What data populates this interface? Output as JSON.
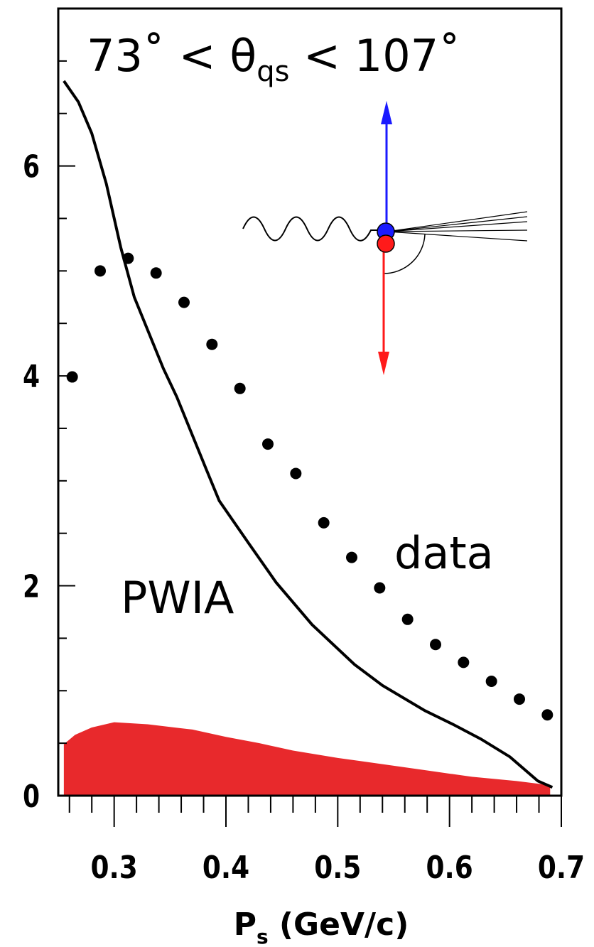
{
  "chart_data": {
    "type": "scatter",
    "title": [
      "73˚ < θ",
      "qs",
      " < 107˚"
    ],
    "x_label": [
      "P",
      "s",
      " (GeV/c)"
    ],
    "xlim": [
      0.25,
      0.7
    ],
    "ylim": [
      0,
      7.5
    ],
    "xticks": [
      {
        "value": 0.3,
        "label": "0.3"
      },
      {
        "value": 0.4,
        "label": "0.4"
      },
      {
        "value": 0.5,
        "label": "0.5"
      },
      {
        "value": 0.6,
        "label": "0.6"
      },
      {
        "value": 0.7,
        "label": "0.7"
      }
    ],
    "xminorticks": [
      0.26,
      0.28,
      0.32,
      0.34,
      0.36,
      0.38,
      0.42,
      0.44,
      0.46,
      0.48,
      0.52,
      0.54,
      0.56,
      0.58,
      0.62,
      0.64,
      0.66,
      0.68
    ],
    "yticks": [
      0,
      2,
      4,
      6
    ],
    "yminorticks": [
      0.5,
      1,
      1.5,
      2.5,
      3,
      3.5,
      4.5,
      5,
      5.5,
      6.5,
      7
    ],
    "series": [
      {
        "name": "data",
        "type": "scatter",
        "color": "#000000",
        "x": [
          0.2625,
          0.2875,
          0.3125,
          0.3375,
          0.3625,
          0.3875,
          0.4125,
          0.4375,
          0.4625,
          0.4875,
          0.5125,
          0.5375,
          0.5625,
          0.5875,
          0.6125,
          0.6375,
          0.6625,
          0.6875
        ],
        "values": [
          3.99,
          5.0,
          5.12,
          4.98,
          4.7,
          4.3,
          3.88,
          3.35,
          3.07,
          2.6,
          2.27,
          1.98,
          1.68,
          1.44,
          1.27,
          1.09,
          0.92,
          0.77
        ]
      },
      {
        "name": "PWIA",
        "type": "line",
        "color": "#000000",
        "x": [
          0.255,
          0.268,
          0.28,
          0.293,
          0.306,
          0.318,
          0.331,
          0.344,
          0.356,
          0.369,
          0.382,
          0.394,
          0.42,
          0.445,
          0.477,
          0.515,
          0.54,
          0.578,
          0.603,
          0.628,
          0.654,
          0.679,
          0.692
        ],
        "values": [
          6.81,
          6.61,
          6.31,
          5.83,
          5.22,
          4.75,
          4.41,
          4.07,
          3.8,
          3.46,
          3.12,
          2.81,
          2.41,
          2.03,
          1.63,
          1.25,
          1.05,
          0.81,
          0.68,
          0.54,
          0.37,
          0.14,
          0.08
        ]
      },
      {
        "type": "area",
        "color": "#e8292c",
        "x": [
          0.255,
          0.265,
          0.28,
          0.3,
          0.33,
          0.37,
          0.4,
          0.43,
          0.46,
          0.5,
          0.54,
          0.58,
          0.62,
          0.66,
          0.69
        ],
        "values": [
          0.49,
          0.58,
          0.65,
          0.7,
          0.68,
          0.63,
          0.56,
          0.5,
          0.43,
          0.36,
          0.3,
          0.24,
          0.18,
          0.14,
          0.1
        ]
      }
    ]
  }
}
